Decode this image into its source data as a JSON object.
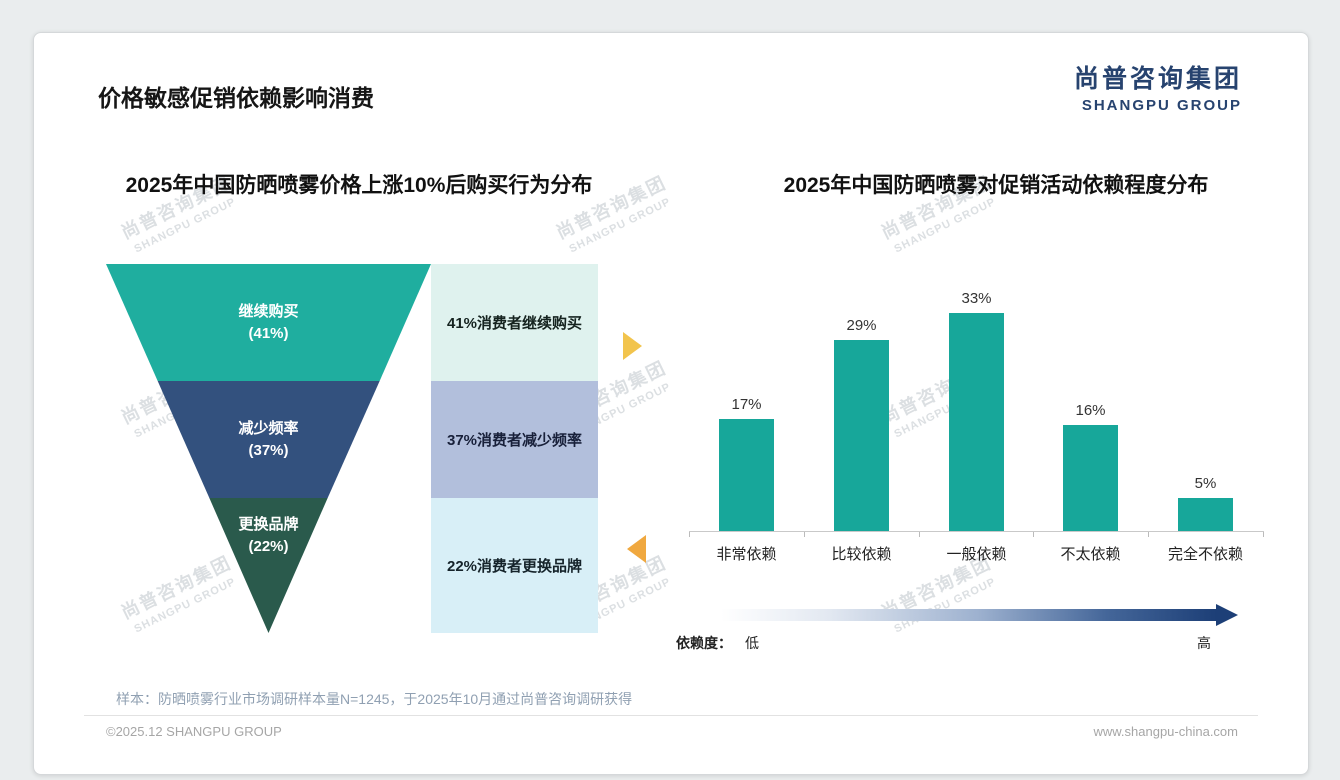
{
  "page": {
    "header_title": "价格敏感促销依赖影响消费",
    "logo": {
      "cn": "尚普咨询集团",
      "en": "SHANGPU GROUP"
    },
    "watermark": {
      "cn": "尚普咨询集团",
      "en": "SHANGPU GROUP"
    },
    "footer": {
      "sample_note": "样本：防晒喷雾行业市场调研样本量N=1245，于2025年10月通过尚普咨询调研获得",
      "copyright": "©2025.12 SHANGPU GROUP",
      "website": "www.shangpu-china.com"
    }
  },
  "colors": {
    "funnel_stage_fills": [
      "#1FAE9F",
      "#33517E",
      "#2A5A4C"
    ],
    "funnel_note_fills": [
      "#DFF2EE",
      "#B2BFDC",
      "#D8EFF7"
    ],
    "bar_fill": "#17A79A",
    "accent_arrow_right": "#F2C44D",
    "accent_arrow_left": "#F0A83F",
    "logo_navy": "#27436F",
    "dependence_arrow_end": "#1D3F77"
  },
  "chart_data": [
    {
      "type": "funnel",
      "title": "2025年中国防晒喷雾价格上涨10%后购买行为分布",
      "stages": [
        {
          "label": "继续购买",
          "value": 41,
          "value_label": "(41%)",
          "annotation": "41%消费者继续购买"
        },
        {
          "label": "减少频率",
          "value": 37,
          "value_label": "(37%)",
          "annotation": "37%消费者减少频率"
        },
        {
          "label": "更换品牌",
          "value": 22,
          "value_label": "(22%)",
          "annotation": "22%消费者更换品牌"
        }
      ]
    },
    {
      "type": "bar",
      "title": "2025年中国防晒喷雾对促销活动依赖程度分布",
      "categories": [
        "非常依赖",
        "比较依赖",
        "一般依赖",
        "不太依赖",
        "完全不依赖"
      ],
      "values": [
        17,
        29,
        33,
        16,
        5
      ],
      "value_labels": [
        "17%",
        "29%",
        "33%",
        "16%",
        "5%"
      ],
      "ylim": [
        0,
        35
      ],
      "grid": false,
      "legend": "none",
      "dependence_scale": {
        "label": "依赖度：",
        "low": "低",
        "high": "高"
      }
    }
  ]
}
